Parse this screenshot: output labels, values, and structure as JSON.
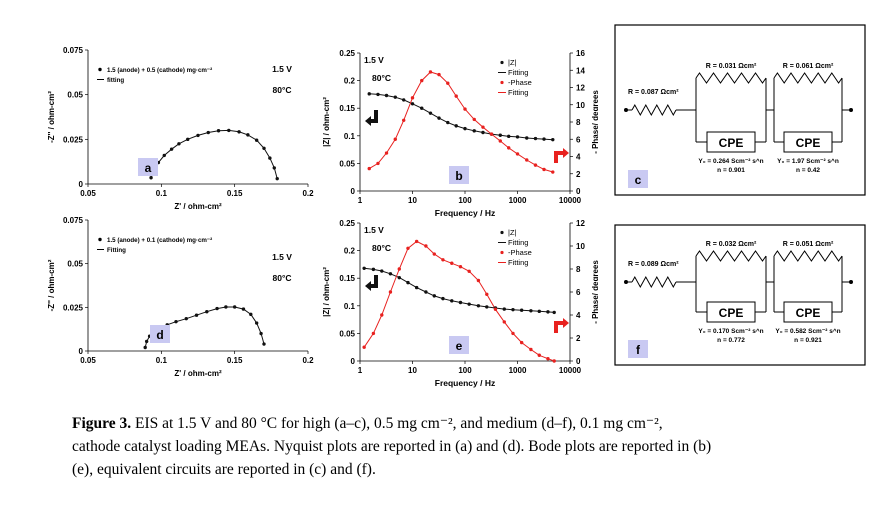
{
  "chart_data": [
    {
      "panel": "a",
      "type": "scatter",
      "legend": [
        "1.5 (anode) + 0.5 (cathode) mg·cm⁻²",
        "fitting"
      ],
      "annotations": [
        "1.5 V",
        "80°C"
      ],
      "xlabel": "Z' / ohm-cm²",
      "ylabel": "-Z'' / ohm-cm²",
      "xlim": [
        0.05,
        0.2
      ],
      "ylim": [
        0,
        0.075
      ],
      "xticks": [
        "0.05",
        "0.1",
        "0.15",
        "0.2"
      ],
      "yticks": [
        "0",
        "0.025",
        "0.05",
        "0.075"
      ],
      "series": [
        {
          "x": [
            0.093,
            0.095,
            0.098,
            0.102,
            0.107,
            0.112,
            0.118,
            0.125,
            0.132,
            0.139,
            0.146,
            0.153,
            0.159,
            0.165,
            0.17,
            0.174,
            0.177,
            0.179
          ],
          "y": [
            0.0035,
            0.008,
            0.012,
            0.016,
            0.0195,
            0.0225,
            0.025,
            0.0272,
            0.0288,
            0.0298,
            0.03,
            0.0292,
            0.0275,
            0.0245,
            0.02,
            0.0145,
            0.009,
            0.003
          ]
        }
      ]
    },
    {
      "panel": "b",
      "type": "line",
      "legend": [
        "|Z|",
        "Fitting",
        "-Phase",
        "Fitting"
      ],
      "annotations": [
        "1.5 V",
        "80°C"
      ],
      "xlabel": "Frequency / Hz",
      "ylabel": "|Z| / ohm-cm²",
      "y2label": "- Phase/ degrees",
      "xscale": "log",
      "xlim": [
        1,
        10000
      ],
      "ylim": [
        0,
        0.25
      ],
      "y2lim": [
        0,
        16
      ],
      "xticks": [
        "1",
        "10",
        "100",
        "1000",
        "10000"
      ],
      "yticks": [
        "0",
        "0.05",
        "0.1",
        "0.15",
        "0.2",
        "0.25"
      ],
      "y2ticks": [
        "0",
        "2",
        "4",
        "6",
        "8",
        "10",
        "12",
        "14",
        "16"
      ],
      "series": [
        {
          "name": "|Z|",
          "axis": "left",
          "x": [
            1.5,
            2.2,
            3.2,
            4.7,
            6.8,
            10,
            15,
            22,
            32,
            47,
            68,
            100,
            150,
            220,
            320,
            470,
            680,
            1000,
            1500,
            2200,
            3200,
            4700
          ],
          "y": [
            0.176,
            0.175,
            0.173,
            0.17,
            0.165,
            0.158,
            0.15,
            0.141,
            0.132,
            0.124,
            0.118,
            0.113,
            0.109,
            0.106,
            0.103,
            0.101,
            0.099,
            0.098,
            0.096,
            0.095,
            0.094,
            0.093
          ]
        },
        {
          "name": "-Phase",
          "axis": "right",
          "x": [
            1.5,
            2.2,
            3.2,
            4.7,
            6.8,
            10,
            15,
            22,
            32,
            47,
            68,
            100,
            150,
            220,
            320,
            470,
            680,
            1000,
            1500,
            2200,
            3200,
            4700
          ],
          "y": [
            2.6,
            3.2,
            4.4,
            6.0,
            8.2,
            10.8,
            12.8,
            13.8,
            13.5,
            12.5,
            11.0,
            9.5,
            8.3,
            7.4,
            6.6,
            5.8,
            5.0,
            4.3,
            3.6,
            3.0,
            2.5,
            2.2
          ]
        }
      ]
    },
    {
      "panel": "d",
      "type": "scatter",
      "legend": [
        "1.5 (anode) + 0.1 (cathode) mg·cm⁻²",
        "Fitting"
      ],
      "annotations": [
        "1.5 V",
        "80°C"
      ],
      "xlabel": "Z' / ohm-cm²",
      "ylabel": "-Z'' / ohm-cm²",
      "xlim": [
        0.05,
        0.2
      ],
      "ylim": [
        0,
        0.075
      ],
      "xticks": [
        "0.05",
        "0.1",
        "0.15",
        "0.2"
      ],
      "yticks": [
        "0",
        "0.025",
        "0.05",
        "0.075"
      ],
      "series": [
        {
          "x": [
            0.089,
            0.09,
            0.092,
            0.095,
            0.099,
            0.104,
            0.11,
            0.117,
            0.124,
            0.131,
            0.138,
            0.144,
            0.15,
            0.156,
            0.161,
            0.165,
            0.168,
            0.17
          ],
          "y": [
            0.002,
            0.0055,
            0.0085,
            0.011,
            0.013,
            0.015,
            0.0168,
            0.0185,
            0.0205,
            0.0225,
            0.0243,
            0.0252,
            0.0252,
            0.024,
            0.021,
            0.016,
            0.01,
            0.004
          ]
        }
      ]
    },
    {
      "panel": "e",
      "type": "line",
      "legend": [
        "|Z|",
        "Fitting",
        "-Phase",
        "Fitting"
      ],
      "annotations": [
        "1.5 V",
        "80°C"
      ],
      "xlabel": "Frequency / Hz",
      "ylabel": "|Z| / ohm-cm²",
      "y2label": "- Phase/ degrees",
      "xscale": "log",
      "xlim": [
        1,
        10000
      ],
      "ylim": [
        0,
        0.25
      ],
      "y2lim": [
        0,
        12
      ],
      "xticks": [
        "1",
        "10",
        "100",
        "1000",
        "10000"
      ],
      "yticks": [
        "0",
        "0.05",
        "0.1",
        "0.15",
        "0.2",
        "0.25"
      ],
      "y2ticks": [
        "0",
        "2",
        "4",
        "6",
        "8",
        "10",
        "12"
      ],
      "series": [
        {
          "name": "|Z|",
          "axis": "left",
          "x": [
            1.2,
            1.8,
            2.6,
            3.8,
            5.6,
            8.2,
            12,
            18,
            26,
            38,
            56,
            82,
            120,
            180,
            260,
            380,
            560,
            820,
            1200,
            1800,
            2600,
            3800,
            5000
          ],
          "y": [
            0.168,
            0.166,
            0.163,
            0.158,
            0.151,
            0.142,
            0.133,
            0.125,
            0.118,
            0.113,
            0.109,
            0.106,
            0.103,
            0.1,
            0.098,
            0.096,
            0.094,
            0.093,
            0.092,
            0.091,
            0.09,
            0.089,
            0.088
          ]
        },
        {
          "name": "-Phase",
          "axis": "right",
          "x": [
            1.2,
            1.8,
            2.6,
            3.8,
            5.6,
            8.2,
            12,
            18,
            26,
            38,
            56,
            82,
            120,
            180,
            260,
            380,
            560,
            820,
            1200,
            1800,
            2600,
            3800,
            5000
          ],
          "y": [
            1.2,
            2.4,
            4.0,
            6.0,
            8.0,
            9.8,
            10.4,
            10.0,
            9.3,
            8.8,
            8.5,
            8.2,
            7.8,
            7.0,
            5.8,
            4.5,
            3.4,
            2.4,
            1.6,
            1.0,
            0.5,
            0.2,
            0.0
          ]
        }
      ]
    }
  ],
  "circuits": [
    {
      "panel": "c",
      "r0": "R = 0.087 Ωcm²",
      "r1": "R = 0.031 Ωcm²",
      "r2": "R = 0.061 Ωcm²",
      "cpe_label": "CPE",
      "y1": "Y₀ = 0.264 Scm⁻² s^n",
      "n1": "n = 0.901",
      "y2": "Y₀ = 1.97 Scm⁻² s^n",
      "n2": "n = 0.42"
    },
    {
      "panel": "f",
      "r0": "R = 0.089 Ωcm²",
      "r1": "R = 0.032 Ωcm²",
      "r2": "R = 0.051 Ωcm²",
      "cpe_label": "CPE",
      "y1": "Y₀ = 0.170 Scm⁻² s^n",
      "n1": "n = 0.772",
      "y2": "Y₀ = 0.582 Scm⁻² s^n",
      "n2": "n = 0.921"
    }
  ],
  "caption": {
    "label": "Figure 3.",
    "line1": "EIS at 1.5 V and 80 °C for high (a–c), 0.5 mg cm⁻², and medium (d–f), 0.1 mg cm⁻²,",
    "line2": "cathode catalyst loading MEAs. Nyquist plots are reported in (a) and (d). Bode plots are reported in (b)",
    "line3": "(e), equivalent circuits are reported in (c) and (f)."
  },
  "colors": {
    "impedance": "#111111",
    "phase": "#e8211f",
    "badge": "#c9c9f2",
    "arrow_phase": "#e8211f",
    "arrow_z": "#111111"
  }
}
